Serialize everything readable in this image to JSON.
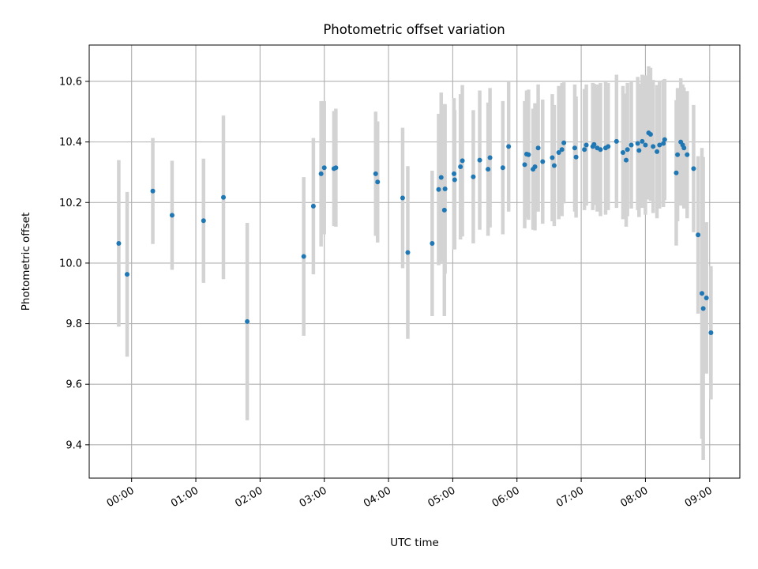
{
  "chart_data": {
    "type": "scatter",
    "title": "Photometric offset variation",
    "xlabel": "UTC time",
    "ylabel": "Photometric offset",
    "grid": true,
    "x_unit": "hours UTC",
    "xlim": [
      -0.66,
      9.47
    ],
    "ylim": [
      9.29,
      10.72
    ],
    "xticks": [
      {
        "value": 0,
        "label": "00:00"
      },
      {
        "value": 1,
        "label": "01:00"
      },
      {
        "value": 2,
        "label": "02:00"
      },
      {
        "value": 3,
        "label": "03:00"
      },
      {
        "value": 4,
        "label": "04:00"
      },
      {
        "value": 5,
        "label": "05:00"
      },
      {
        "value": 6,
        "label": "06:00"
      },
      {
        "value": 7,
        "label": "07:00"
      },
      {
        "value": 8,
        "label": "08:00"
      },
      {
        "value": 9,
        "label": "09:00"
      }
    ],
    "yticks": [
      {
        "value": 9.4,
        "label": "9.4"
      },
      {
        "value": 9.6,
        "label": "9.6"
      },
      {
        "value": 9.8,
        "label": "9.8"
      },
      {
        "value": 10.0,
        "label": "10.0"
      },
      {
        "value": 10.2,
        "label": "10.2"
      },
      {
        "value": 10.4,
        "label": "10.4"
      },
      {
        "value": 10.6,
        "label": "10.6"
      }
    ],
    "series": [
      {
        "name": "offset",
        "color": "#1f77b4",
        "error_color": "#d3d3d3",
        "points": [
          [
            -0.2,
            10.065,
            0.275
          ],
          [
            -0.07,
            9.963,
            0.272
          ],
          [
            0.33,
            10.238,
            0.175
          ],
          [
            0.63,
            10.158,
            0.18
          ],
          [
            1.12,
            10.14,
            0.205
          ],
          [
            1.43,
            10.217,
            0.27
          ],
          [
            1.8,
            9.807,
            0.326
          ],
          [
            2.68,
            10.022,
            0.262
          ],
          [
            2.83,
            10.188,
            0.225
          ],
          [
            2.95,
            10.295,
            0.24
          ],
          [
            3.0,
            10.315,
            0.22
          ],
          [
            3.15,
            10.312,
            0.19
          ],
          [
            3.18,
            10.315,
            0.195
          ],
          [
            3.8,
            10.295,
            0.205
          ],
          [
            3.83,
            10.268,
            0.2
          ],
          [
            4.22,
            10.215,
            0.232
          ],
          [
            4.3,
            10.035,
            0.285
          ],
          [
            4.68,
            10.065,
            0.24
          ],
          [
            4.78,
            10.243,
            0.25
          ],
          [
            4.82,
            10.283,
            0.28
          ],
          [
            4.87,
            10.175,
            0.35
          ],
          [
            4.88,
            10.245,
            0.28
          ],
          [
            5.02,
            10.295,
            0.25
          ],
          [
            5.03,
            10.275,
            0.23
          ],
          [
            5.12,
            10.318,
            0.24
          ],
          [
            5.15,
            10.338,
            0.25
          ],
          [
            5.32,
            10.285,
            0.22
          ],
          [
            5.42,
            10.34,
            0.23
          ],
          [
            5.55,
            10.31,
            0.22
          ],
          [
            5.58,
            10.348,
            0.23
          ],
          [
            5.78,
            10.315,
            0.22
          ],
          [
            5.87,
            10.385,
            0.215
          ],
          [
            6.12,
            10.325,
            0.21
          ],
          [
            6.15,
            10.36,
            0.21
          ],
          [
            6.18,
            10.358,
            0.215
          ],
          [
            6.25,
            10.31,
            0.2
          ],
          [
            6.28,
            10.318,
            0.21
          ],
          [
            6.33,
            10.38,
            0.21
          ],
          [
            6.4,
            10.335,
            0.205
          ],
          [
            6.58,
            10.322,
            0.2
          ],
          [
            6.55,
            10.348,
            0.21
          ],
          [
            6.65,
            10.365,
            0.22
          ],
          [
            6.7,
            10.375,
            0.22
          ],
          [
            6.73,
            10.397,
            0.2
          ],
          [
            6.9,
            10.38,
            0.21
          ],
          [
            6.92,
            10.35,
            0.2
          ],
          [
            7.05,
            10.375,
            0.2
          ],
          [
            7.08,
            10.39,
            0.2
          ],
          [
            7.18,
            10.385,
            0.21
          ],
          [
            7.2,
            10.392,
            0.2
          ],
          [
            7.25,
            10.38,
            0.21
          ],
          [
            7.3,
            10.375,
            0.22
          ],
          [
            7.38,
            10.38,
            0.22
          ],
          [
            7.42,
            10.385,
            0.21
          ],
          [
            7.55,
            10.402,
            0.22
          ],
          [
            7.65,
            10.365,
            0.22
          ],
          [
            7.7,
            10.34,
            0.22
          ],
          [
            7.72,
            10.375,
            0.22
          ],
          [
            7.78,
            10.39,
            0.21
          ],
          [
            7.88,
            10.395,
            0.22
          ],
          [
            7.9,
            10.372,
            0.22
          ],
          [
            7.95,
            10.402,
            0.22
          ],
          [
            8.0,
            10.39,
            0.23
          ],
          [
            8.05,
            10.43,
            0.22
          ],
          [
            8.08,
            10.425,
            0.22
          ],
          [
            8.12,
            10.385,
            0.22
          ],
          [
            8.18,
            10.368,
            0.22
          ],
          [
            8.22,
            10.39,
            0.21
          ],
          [
            8.28,
            10.395,
            0.21
          ],
          [
            8.3,
            10.408,
            0.2
          ],
          [
            8.48,
            10.298,
            0.24
          ],
          [
            8.5,
            10.358,
            0.22
          ],
          [
            8.55,
            10.4,
            0.21
          ],
          [
            8.58,
            10.39,
            0.2
          ],
          [
            8.6,
            10.38,
            0.2
          ],
          [
            8.65,
            10.358,
            0.21
          ],
          [
            8.75,
            10.312,
            0.21
          ],
          [
            8.82,
            10.093,
            0.26
          ],
          [
            8.88,
            9.9,
            0.48
          ],
          [
            8.9,
            9.85,
            0.5
          ],
          [
            8.95,
            9.885,
            0.25
          ],
          [
            9.02,
            9.77,
            0.22
          ]
        ]
      }
    ]
  }
}
